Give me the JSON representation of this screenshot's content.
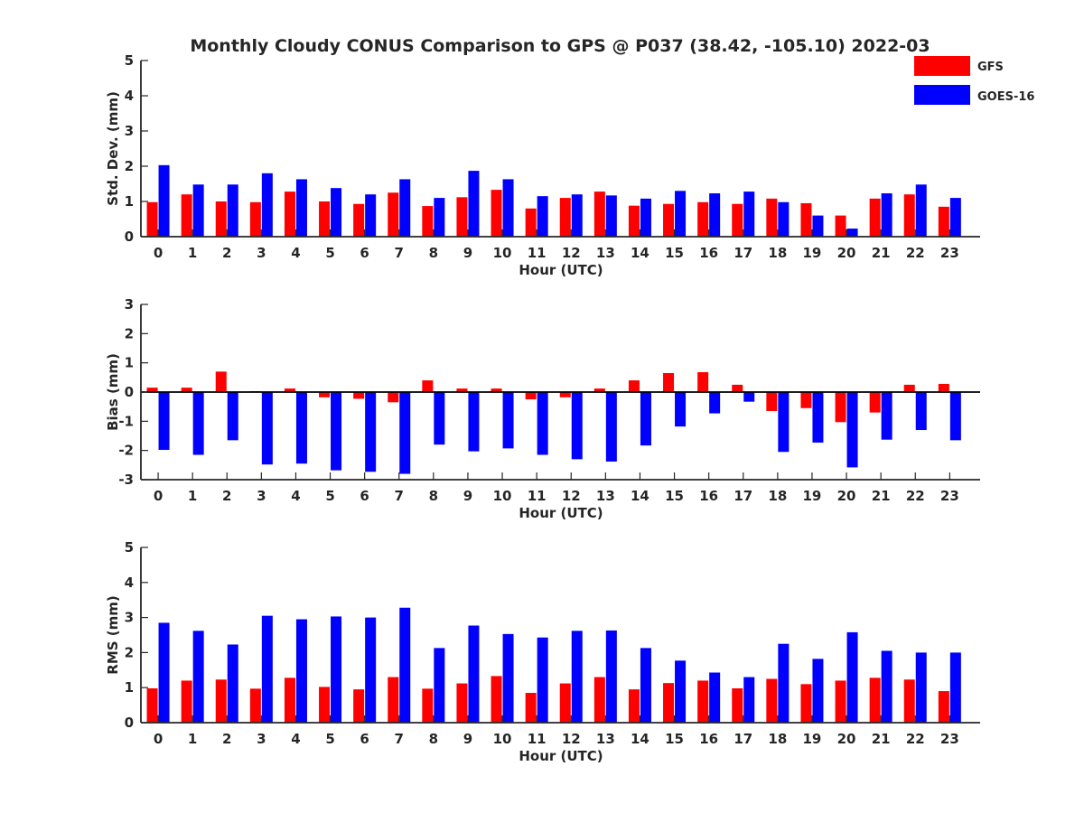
{
  "title": "Monthly Cloudy CONUS Comparison to GPS @ P037 (38.42, -105.10) 2022-03",
  "legend": [
    {
      "label": "GFS",
      "color": "#ff0000"
    },
    {
      "label": "GOES-16",
      "color": "#0000ff"
    }
  ],
  "chart_data": [
    {
      "type": "bar",
      "name": "std-dev",
      "xlabel": "Hour (UTC)",
      "ylabel": "Std. Dev. (mm)",
      "ylim": [
        0,
        5
      ],
      "yticks": [
        0,
        1,
        2,
        3,
        4,
        5
      ],
      "categories": [
        "0",
        "1",
        "2",
        "3",
        "4",
        "5",
        "6",
        "7",
        "8",
        "9",
        "10",
        "11",
        "12",
        "13",
        "14",
        "15",
        "16",
        "17",
        "18",
        "19",
        "20",
        "21",
        "22",
        "23"
      ],
      "series": [
        {
          "name": "GFS",
          "color": "#ff0000",
          "values": [
            0.98,
            1.2,
            1.0,
            0.98,
            1.28,
            1.0,
            0.93,
            1.25,
            0.87,
            1.12,
            1.33,
            0.8,
            1.1,
            1.28,
            0.88,
            0.93,
            0.98,
            0.93,
            1.08,
            0.95,
            0.6,
            1.08,
            1.2,
            0.85
          ]
        },
        {
          "name": "GOES-16",
          "color": "#0000ff",
          "values": [
            2.03,
            1.48,
            1.48,
            1.8,
            1.63,
            1.38,
            1.2,
            1.63,
            1.1,
            1.87,
            1.63,
            1.15,
            1.2,
            1.17,
            1.08,
            1.3,
            1.23,
            1.28,
            0.98,
            0.6,
            0.23,
            1.23,
            1.48,
            1.1
          ]
        }
      ]
    },
    {
      "type": "bar",
      "name": "bias",
      "xlabel": "Hour (UTC)",
      "ylabel": "Bias (mm)",
      "ylim": [
        -3,
        3
      ],
      "yticks": [
        -3,
        -2,
        -1,
        0,
        1,
        2,
        3
      ],
      "categories": [
        "0",
        "1",
        "2",
        "3",
        "4",
        "5",
        "6",
        "7",
        "8",
        "9",
        "10",
        "11",
        "12",
        "13",
        "14",
        "15",
        "16",
        "17",
        "18",
        "19",
        "20",
        "21",
        "22",
        "23"
      ],
      "series": [
        {
          "name": "GFS",
          "color": "#ff0000",
          "values": [
            0.15,
            0.15,
            0.7,
            0.03,
            0.12,
            -0.18,
            -0.23,
            -0.35,
            0.4,
            0.12,
            0.12,
            -0.25,
            -0.18,
            0.12,
            0.4,
            0.65,
            0.68,
            0.25,
            -0.65,
            -0.55,
            -1.03,
            -0.7,
            0.25,
            0.28
          ]
        },
        {
          "name": "GOES-16",
          "color": "#0000ff",
          "values": [
            -1.98,
            -2.15,
            -1.65,
            -2.48,
            -2.45,
            -2.68,
            -2.73,
            -2.8,
            -1.8,
            -2.03,
            -1.93,
            -2.15,
            -2.3,
            -2.38,
            -1.83,
            -1.18,
            -0.73,
            -0.33,
            -2.05,
            -1.73,
            -2.58,
            -1.63,
            -1.3,
            -1.65
          ]
        }
      ]
    },
    {
      "type": "bar",
      "name": "rms",
      "xlabel": "Hour (UTC)",
      "ylabel": "RMS (mm)",
      "ylim": [
        0,
        5
      ],
      "yticks": [
        0,
        1,
        2,
        3,
        4,
        5
      ],
      "categories": [
        "0",
        "1",
        "2",
        "3",
        "4",
        "5",
        "6",
        "7",
        "8",
        "9",
        "10",
        "11",
        "12",
        "13",
        "14",
        "15",
        "16",
        "17",
        "18",
        "19",
        "20",
        "21",
        "22",
        "23"
      ],
      "series": [
        {
          "name": "GFS",
          "color": "#ff0000",
          "values": [
            0.98,
            1.2,
            1.23,
            0.97,
            1.28,
            1.02,
            0.95,
            1.3,
            0.97,
            1.12,
            1.33,
            0.85,
            1.12,
            1.3,
            0.95,
            1.13,
            1.2,
            0.98,
            1.25,
            1.1,
            1.2,
            1.28,
            1.23,
            0.9
          ]
        },
        {
          "name": "GOES-16",
          "color": "#0000ff",
          "values": [
            2.85,
            2.62,
            2.23,
            3.05,
            2.95,
            3.03,
            3.0,
            3.28,
            2.13,
            2.77,
            2.53,
            2.43,
            2.62,
            2.63,
            2.13,
            1.77,
            1.43,
            1.3,
            2.25,
            1.82,
            2.58,
            2.05,
            2.0,
            2.0
          ]
        }
      ]
    }
  ]
}
